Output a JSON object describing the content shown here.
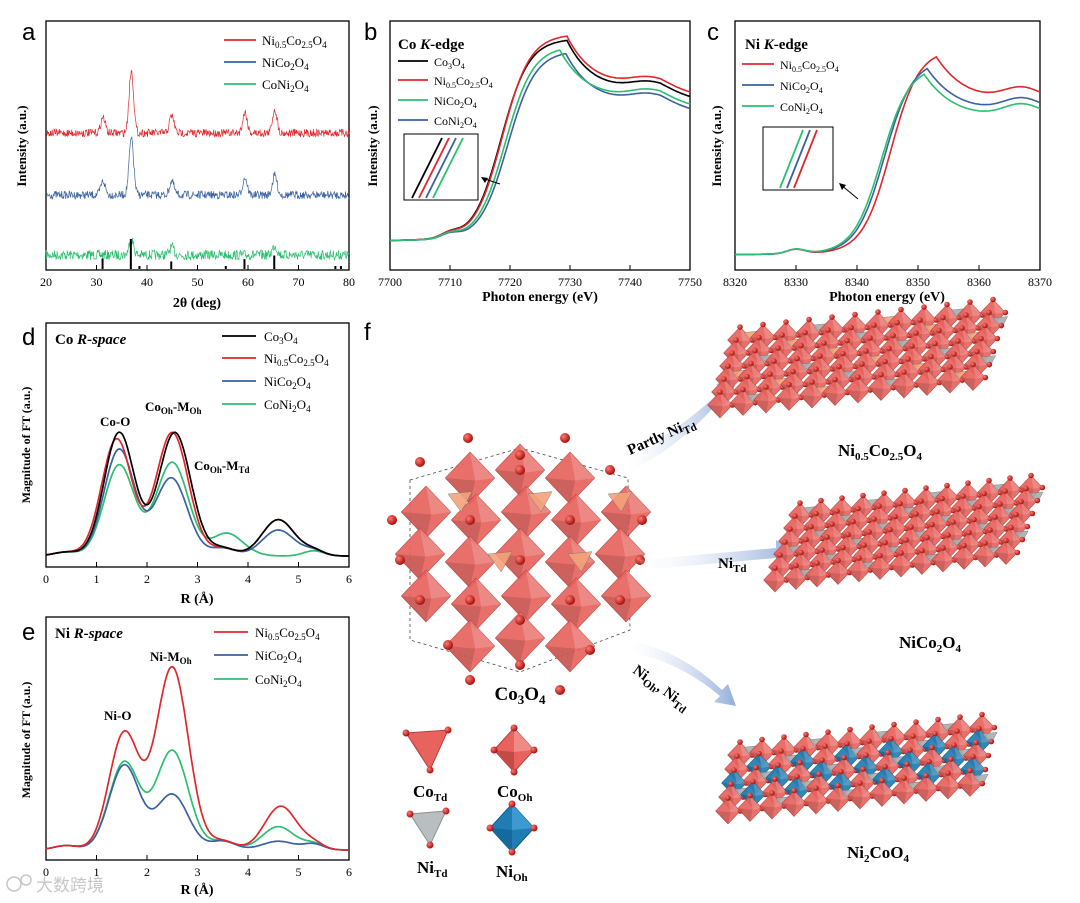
{
  "panels": {
    "a": {
      "letter": "a",
      "xlabel": "2θ (deg)",
      "ylabel": "Intensity (a.u.)",
      "xticks": [
        "20",
        "30",
        "40",
        "50",
        "60",
        "70",
        "80"
      ]
    },
    "b": {
      "letter": "b",
      "title": "Co K-edge",
      "title_el": "Co",
      "title_edge": "K",
      "title_rest": "-edge",
      "xlabel": "Photon energy (eV)",
      "ylabel": "Intensity (a.u.)",
      "xticks": [
        "7700",
        "7710",
        "7720",
        "7730",
        "7740",
        "7750"
      ]
    },
    "c": {
      "letter": "c",
      "title": "Ni K-edge",
      "title_el": "Ni",
      "title_edge": "K",
      "title_rest": "-edge",
      "xlabel": "Photon energy (eV)",
      "ylabel": "Intensity (a.u.)",
      "xticks": [
        "8320",
        "8330",
        "8340",
        "8350",
        "8360",
        "8370"
      ]
    },
    "d": {
      "letter": "d",
      "title": "Co  R-space",
      "title_el": "Co",
      "title_space": "R-space",
      "xlabel": "R (Å)",
      "ylabel": "Magnitude of FT (a.u.)",
      "xticks": [
        "0",
        "1",
        "2",
        "3",
        "4",
        "5",
        "6"
      ],
      "annotations": {
        "coo": "Co-O",
        "cooh_a": "Co",
        "cooh_b": "Oh",
        "cooh_c": "-M",
        "cooh_d": "Oh",
        "cotd_a": "Co",
        "cotd_b": "Oh",
        "cotd_c": "-M",
        "cotd_d": "Td"
      }
    },
    "e": {
      "letter": "e",
      "title": "Ni  R-space",
      "title_el": "Ni",
      "title_space": "R-space",
      "xlabel": "R (Å)",
      "ylabel": "Magnitude of FT (a.u.)",
      "xticks": [
        "0",
        "1",
        "2",
        "3",
        "4",
        "5",
        "6"
      ],
      "annotations": {
        "nio": "Ni-O",
        "nim_a": "Ni-M",
        "nim_b": "Oh"
      }
    },
    "f": {
      "letter": "f"
    }
  },
  "labels": {
    "co3o4_a": "Co",
    "co3o4_b": "3",
    "co3o4_c": "O",
    "co3o4_d": "4",
    "ni05_a": "Ni",
    "ni05_b": "0.5",
    "ni05_c": "Co",
    "ni05_d": "2.5",
    "ni05_e": "O",
    "ni05_f": "4",
    "nico_a": "NiCo",
    "nico_b": "2",
    "nico_c": "O",
    "nico_d": "4",
    "coni_a": "CoNi",
    "coni_b": "2",
    "coni_c": "O",
    "coni_d": "4",
    "ni2co_a": "Ni",
    "ni2co_b": "2",
    "ni2co_c": "CoO",
    "ni2co_d": "4"
  },
  "arrows": {
    "partly_a": "Partly Ni",
    "partly_b": "Td",
    "nitd_a": "Ni",
    "nitd_b": "Td",
    "nioh_a": "Ni",
    "nioh_b": "Oh",
    "nioh_c": ", Ni",
    "nioh_d": "Td"
  },
  "legend_units": {
    "co_td_a": "Co",
    "co_td_b": "Td",
    "co_oh_a": "Co",
    "co_oh_b": "Oh",
    "ni_td_a": "Ni",
    "ni_td_b": "Td",
    "ni_oh_a": "Ni",
    "ni_oh_b": "Oh"
  },
  "watermark": "大数跨境",
  "colors": {
    "co3o4": "#000000",
    "ni05": "#e0272b",
    "nico2o4": "#3a62a0",
    "coni2o4": "#2bbf6f",
    "oct": "#e8635e",
    "octdark": "#b8403c",
    "tet_gray": "#a8aeb0",
    "oct_blue": "#1f7db3",
    "oxygen": "#cc1010"
  },
  "chart_data": [
    {
      "panel": "a",
      "type": "line",
      "title": "",
      "xlabel": "2θ (deg)",
      "ylabel": "Intensity (a.u.)",
      "xlim": [
        20,
        80
      ],
      "series": [
        {
          "name": "Ni0.5Co2.5O4",
          "offset": 2.0,
          "peaks": [
            [
              31.3,
              0.25
            ],
            [
              36.9,
              1.0
            ],
            [
              44.9,
              0.28
            ],
            [
              59.4,
              0.33
            ],
            [
              65.3,
              0.38
            ]
          ]
        },
        {
          "name": "NiCo2O4",
          "offset": 1.0,
          "peaks": [
            [
              31.3,
              0.22
            ],
            [
              36.9,
              0.9
            ],
            [
              44.9,
              0.22
            ],
            [
              59.4,
              0.28
            ],
            [
              65.3,
              0.32
            ]
          ]
        },
        {
          "name": "CoNi2O4",
          "offset": 0.0,
          "peaks": [
            [
              36.9,
              0.25
            ],
            [
              44.9,
              0.12
            ],
            [
              65.3,
              0.15
            ]
          ]
        }
      ],
      "reference_sticks": [
        [
          31.2,
          0.35
        ],
        [
          36.8,
          1.0
        ],
        [
          38.5,
          0.1
        ],
        [
          44.8,
          0.25
        ],
        [
          55.6,
          0.1
        ],
        [
          59.3,
          0.33
        ],
        [
          65.2,
          0.45
        ],
        [
          77.3,
          0.1
        ],
        [
          78.4,
          0.1
        ]
      ]
    },
    {
      "panel": "b",
      "type": "line",
      "title": "Co K-edge",
      "xlabel": "Photon energy (eV)",
      "ylabel": "Intensity (a.u.)",
      "xlim": [
        7700,
        7750
      ],
      "series": [
        {
          "name": "Co3O4",
          "edge": 7718.5,
          "peak_x": 7729.5,
          "peak_y": 1.38
        },
        {
          "name": "Ni0.5Co2.5O4",
          "edge": 7718.7,
          "peak_x": 7729.5,
          "peak_y": 1.41
        },
        {
          "name": "NiCo2O4",
          "edge": 7719.6,
          "peak_x": 7729.3,
          "peak_y": 1.3
        },
        {
          "name": "CoNi2O4",
          "edge": 7719.2,
          "peak_x": 7728.3,
          "peak_y": 1.33
        }
      ]
    },
    {
      "panel": "c",
      "type": "line",
      "title": "Ni K-edge",
      "xlabel": "Photon energy (eV)",
      "ylabel": "Intensity (a.u.)",
      "xlim": [
        8320,
        8370
      ],
      "series": [
        {
          "name": "Ni0.5Co2.5O4",
          "edge": 8345.5,
          "peak_x": 8353,
          "peak_y": 1.42
        },
        {
          "name": "NiCo2O4",
          "edge": 8344.5,
          "peak_x": 8351.5,
          "peak_y": 1.35
        },
        {
          "name": "CoNi2O4",
          "edge": 8344.0,
          "peak_x": 8351,
          "peak_y": 1.31
        }
      ]
    },
    {
      "panel": "d",
      "type": "line",
      "title": "Co R-space",
      "xlabel": "R (Å)",
      "ylabel": "Magnitude of FT (a.u.)",
      "xlim": [
        0,
        6
      ],
      "series": [
        {
          "name": "Co3O4",
          "peaks": [
            [
              1.45,
              0.95
            ],
            [
              2.55,
              0.95
            ],
            [
              4.6,
              0.28
            ]
          ]
        },
        {
          "name": "Ni0.5Co2.5O4",
          "peaks": [
            [
              1.4,
              0.9
            ],
            [
              2.5,
              0.95
            ],
            [
              4.6,
              0.28
            ]
          ]
        },
        {
          "name": "NiCo2O4",
          "peaks": [
            [
              1.45,
              0.82
            ],
            [
              2.48,
              0.6
            ],
            [
              4.6,
              0.2
            ]
          ]
        },
        {
          "name": "CoNi2O4",
          "peaks": [
            [
              1.45,
              0.7
            ],
            [
              2.5,
              0.72
            ],
            [
              3.65,
              0.12
            ]
          ]
        }
      ]
    },
    {
      "panel": "e",
      "type": "line",
      "title": "Ni R-space",
      "xlabel": "R (Å)",
      "ylabel": "Magnitude of FT (a.u.)",
      "xlim": [
        0,
        6
      ],
      "series": [
        {
          "name": "Ni0.5Co2.5O4",
          "peaks": [
            [
              1.55,
              0.8
            ],
            [
              2.5,
              1.25
            ],
            [
              4.65,
              0.3
            ]
          ]
        },
        {
          "name": "NiCo2O4",
          "peaks": [
            [
              1.55,
              0.58
            ],
            [
              2.5,
              0.38
            ],
            [
              4.6,
              0.06
            ]
          ]
        },
        {
          "name": "CoNi2O4",
          "peaks": [
            [
              1.55,
              0.6
            ],
            [
              2.5,
              0.68
            ],
            [
              4.6,
              0.16
            ]
          ]
        }
      ]
    }
  ]
}
